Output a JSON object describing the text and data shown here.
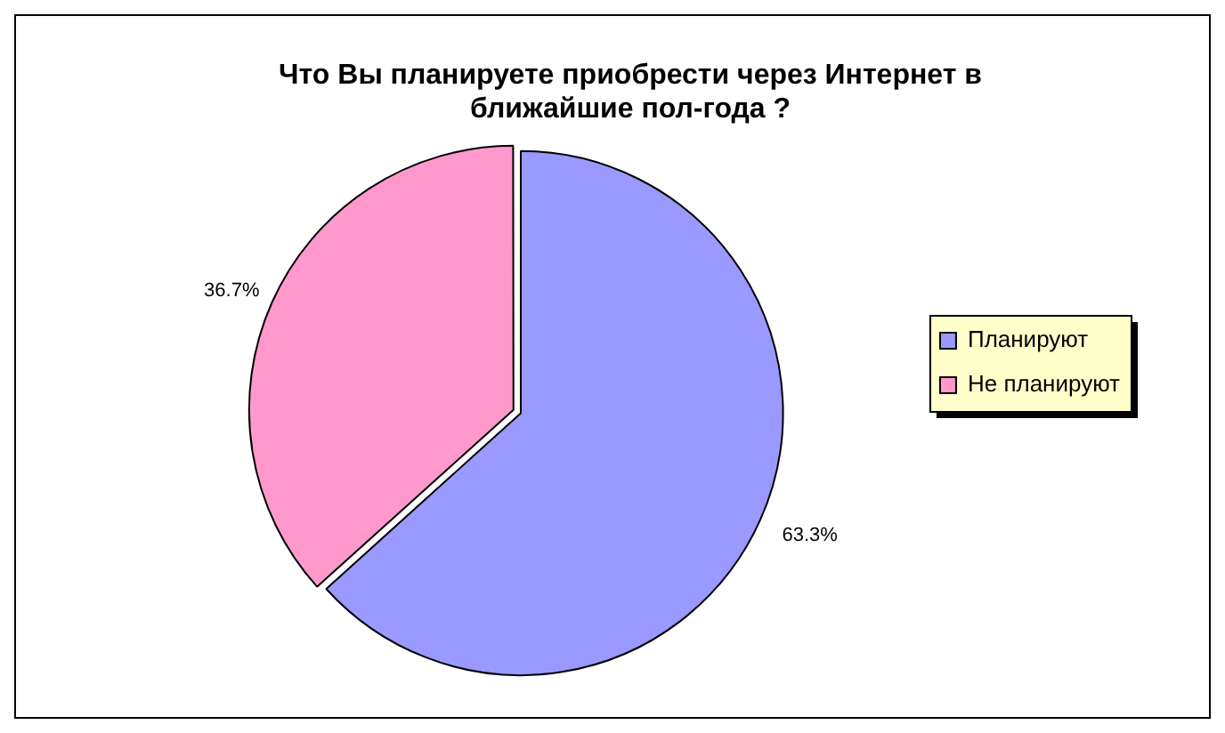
{
  "chart_data": {
    "type": "pie",
    "title": "Что Вы планируете приобрести через Интернет в ближайшие пол-года ?",
    "categories": [
      "Планируют",
      "Не планируют"
    ],
    "values": [
      63.3,
      36.7
    ],
    "colors": [
      "#9999ff",
      "#ff99cc"
    ],
    "value_labels": [
      "63.3%",
      "36.7%"
    ],
    "legend": "right"
  }
}
